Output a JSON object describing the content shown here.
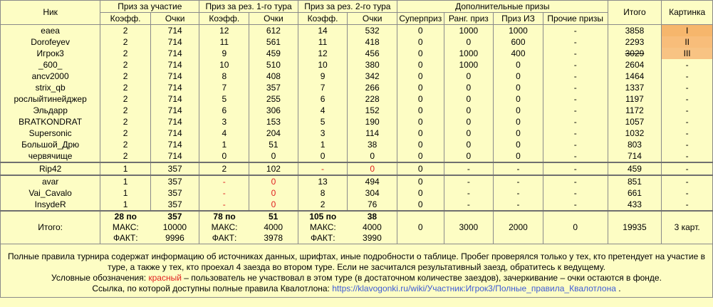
{
  "headers": {
    "nick": "Ник",
    "participation": "Приз за участие",
    "tour1": "Приз за рез. 1-го тура",
    "tour2": "Приз за рез. 2-го тура",
    "extra": "Дополнительные призы",
    "total": "Итого",
    "picture": "Картинка",
    "coef": "Коэфф.",
    "points": "Очки",
    "superprize": "Суперприз",
    "rank_prize": "Ранг. приз",
    "iz_prize": "Приз ИЗ",
    "other_prizes": "Прочие призы"
  },
  "rows": [
    {
      "nick": "eaea",
      "c0": "2",
      "p0": "714",
      "c1": "12",
      "p1": "612",
      "c2": "14",
      "p2": "532",
      "sp": "0",
      "rp": "1000",
      "iz": "1000",
      "op": "-",
      "total": "3858",
      "pic": "I"
    },
    {
      "nick": "Dorofeyev",
      "c0": "2",
      "p0": "714",
      "c1": "11",
      "p1": "561",
      "c2": "11",
      "p2": "418",
      "sp": "0",
      "rp": "0",
      "iz": "600",
      "op": "-",
      "total": "2293",
      "pic": "II"
    },
    {
      "nick": "Игрок3",
      "c0": "2",
      "p0": "714",
      "c1": "9",
      "p1": "459",
      "c2": "12",
      "p2": "456",
      "sp": "0",
      "rp": "1000",
      "iz": "400",
      "op": "-",
      "total": "3029",
      "pic": "III"
    },
    {
      "nick": "_600_",
      "c0": "2",
      "p0": "714",
      "c1": "10",
      "p1": "510",
      "c2": "10",
      "p2": "380",
      "sp": "0",
      "rp": "1000",
      "iz": "0",
      "op": "-",
      "total": "2604",
      "pic": "-"
    },
    {
      "nick": "ancv2000",
      "c0": "2",
      "p0": "714",
      "c1": "8",
      "p1": "408",
      "c2": "9",
      "p2": "342",
      "sp": "0",
      "rp": "0",
      "iz": "0",
      "op": "-",
      "total": "1464",
      "pic": "-"
    },
    {
      "nick": "strix_qb",
      "c0": "2",
      "p0": "714",
      "c1": "7",
      "p1": "357",
      "c2": "7",
      "p2": "266",
      "sp": "0",
      "rp": "0",
      "iz": "0",
      "op": "-",
      "total": "1337",
      "pic": "-"
    },
    {
      "nick": "рослыйтинейджер",
      "c0": "2",
      "p0": "714",
      "c1": "5",
      "p1": "255",
      "c2": "6",
      "p2": "228",
      "sp": "0",
      "rp": "0",
      "iz": "0",
      "op": "-",
      "total": "1197",
      "pic": "-"
    },
    {
      "nick": "Эльдарр",
      "c0": "2",
      "p0": "714",
      "c1": "6",
      "p1": "306",
      "c2": "4",
      "p2": "152",
      "sp": "0",
      "rp": "0",
      "iz": "0",
      "op": "-",
      "total": "1172",
      "pic": "-"
    },
    {
      "nick": "BRATKONDRAT",
      "c0": "2",
      "p0": "714",
      "c1": "3",
      "p1": "153",
      "c2": "5",
      "p2": "190",
      "sp": "0",
      "rp": "0",
      "iz": "0",
      "op": "-",
      "total": "1057",
      "pic": "-"
    },
    {
      "nick": "Supersonic",
      "c0": "2",
      "p0": "714",
      "c1": "4",
      "p1": "204",
      "c2": "3",
      "p2": "114",
      "sp": "0",
      "rp": "0",
      "iz": "0",
      "op": "-",
      "total": "1032",
      "pic": "-"
    },
    {
      "nick": "Большой_Дрю",
      "c0": "2",
      "p0": "714",
      "c1": "1",
      "p1": "51",
      "c2": "1",
      "p2": "38",
      "sp": "0",
      "rp": "0",
      "iz": "0",
      "op": "-",
      "total": "803",
      "pic": "-"
    },
    {
      "nick": "червячище",
      "c0": "2",
      "p0": "714",
      "c1": "0",
      "p1": "0",
      "c2": "0",
      "p2": "0",
      "sp": "0",
      "rp": "0",
      "iz": "0",
      "op": "-",
      "total": "714",
      "pic": "-"
    },
    {
      "nick": "Rip42",
      "c0": "1",
      "p0": "357",
      "c1": "2",
      "p1": "102",
      "c2": "-",
      "p2": "0",
      "sp": "0",
      "rp": "-",
      "iz": "-",
      "op": "-",
      "total": "459",
      "pic": "-"
    },
    {
      "nick": "avar",
      "c0": "1",
      "p0": "357",
      "c1": "-",
      "p1": "0",
      "c2": "13",
      "p2": "494",
      "sp": "0",
      "rp": "-",
      "iz": "-",
      "op": "-",
      "total": "851",
      "pic": "-"
    },
    {
      "nick": "Vai_Cavalo",
      "c0": "1",
      "p0": "357",
      "c1": "-",
      "p1": "0",
      "c2": "8",
      "p2": "304",
      "sp": "0",
      "rp": "-",
      "iz": "-",
      "op": "-",
      "total": "661",
      "pic": "-"
    },
    {
      "nick": "InsydeR",
      "c0": "1",
      "p0": "357",
      "c1": "-",
      "p1": "0",
      "c2": "2",
      "p2": "76",
      "sp": "0",
      "rp": "-",
      "iz": "-",
      "op": "-",
      "total": "433",
      "pic": "-"
    }
  ],
  "totals": {
    "label": "Итого:",
    "participation_count": "28 по",
    "participation_each": "357",
    "tour1_count": "78 по",
    "tour1_each": "51",
    "tour2_count": "105 по",
    "tour2_each": "38",
    "max_label": "МАКС:",
    "fact_label": "ФАКТ:",
    "participation_max": "10000",
    "participation_fact": "9996",
    "tour1_max": "4000",
    "tour1_fact": "3978",
    "tour2_max": "4000",
    "tour2_fact": "3990",
    "superprize": "0",
    "rank_prize": "3000",
    "iz_prize": "2000",
    "other_prizes": "0",
    "grand_total": "19935",
    "pictures": "3 карт."
  },
  "footer": {
    "line1": "Полные правила турнира содержат информацию об источниках данных, шрифтах, иные подробности о таблице. Пробег проверялся только у тех, кто претендует на участие в туре, а также у тех, кто проехал 4 заезда во втором туре. Если не засчитался результативный заезд, обратитесь к ведущему.",
    "legend_prefix": "Условные обозначения:",
    "legend_red": "красный",
    "legend_suffix": "– пользователь не участвовал в этом туре (в достаточном количестве заездов), зачеркивание – очки остаются в фонде.",
    "link_prefix": "Ссылка, по которой доступны полные правила Квалотлона:",
    "link_text": "https://klavogonki.ru/wiki/Участник:Игрок3/Полные_правила_Квалотлона",
    "link_suffix": "."
  },
  "colors": {
    "background": "#fdfdc4",
    "gold": "#f6b66c",
    "red": "#e02020",
    "link": "#3d5bd6"
  }
}
